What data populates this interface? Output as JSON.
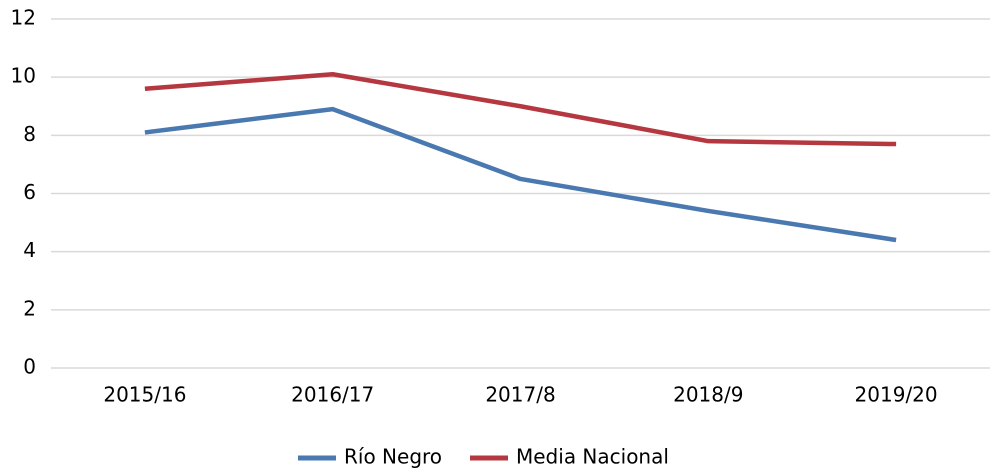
{
  "chart_data": {
    "type": "line",
    "categories": [
      "2015/16",
      "2016/17",
      "2017/8",
      "2018/9",
      "2019/20"
    ],
    "series": [
      {
        "name": "Río Negro",
        "color": "#4a78b0",
        "values": [
          8.1,
          8.9,
          6.5,
          5.4,
          4.4
        ]
      },
      {
        "name": "Media Nacional",
        "color": "#b5373f",
        "values": [
          9.6,
          10.1,
          9.0,
          7.8,
          7.7
        ]
      }
    ],
    "ylim": [
      0,
      12
    ],
    "yticks": [
      0,
      2,
      4,
      6,
      8,
      10,
      12
    ],
    "grid": true,
    "legend": "bottom"
  }
}
